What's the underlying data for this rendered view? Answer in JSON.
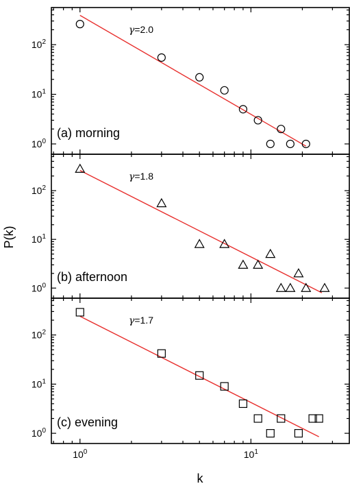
{
  "chart_data": {
    "type": "scatter",
    "xscale": "log",
    "yscale": "log",
    "xlim": [
      0.68,
      38
    ],
    "ylim": [
      0.62,
      560
    ],
    "xlabel": "k",
    "ylabel": "P(k)",
    "x_ticks": [
      {
        "value": 1,
        "base": "10",
        "exp": "0"
      },
      {
        "value": 10,
        "base": "10",
        "exp": "1"
      }
    ],
    "y_ticks": [
      {
        "value": 1,
        "base": "10",
        "exp": "0"
      },
      {
        "value": 10,
        "base": "10",
        "exp": "1"
      },
      {
        "value": 100,
        "base": "10",
        "exp": "2"
      }
    ],
    "fit_color": "#e8302e",
    "panels": [
      {
        "label": "(a) morning",
        "marker": "circle",
        "gamma_symbol": "γ",
        "gamma_text": "=2.0",
        "x": [
          1,
          3,
          5,
          7,
          9,
          11,
          13,
          15,
          17,
          21
        ],
        "y": [
          260,
          55,
          22,
          12,
          5,
          3,
          1,
          2,
          1,
          1
        ],
        "fit": {
          "x": [
            1,
            21
          ],
          "y": [
            390,
            0.9
          ]
        }
      },
      {
        "label": "(b) afternoon",
        "marker": "triangle",
        "gamma_symbol": "γ",
        "gamma_text": "=1.8",
        "x": [
          1,
          3,
          5,
          7,
          9,
          11,
          13,
          15,
          17,
          19,
          21,
          27
        ],
        "y": [
          280,
          55,
          8,
          8,
          3,
          3,
          5,
          1,
          1,
          2,
          1,
          1
        ],
        "fit": {
          "x": [
            1,
            26
          ],
          "y": [
            260,
            0.8
          ]
        }
      },
      {
        "label": "(c) evening",
        "marker": "square",
        "gamma_symbol": "γ",
        "gamma_text": "=1.7",
        "x": [
          1,
          3,
          5,
          7,
          9,
          11,
          13,
          15,
          19,
          23,
          25
        ],
        "y": [
          290,
          42,
          15,
          9,
          4,
          2,
          1,
          2,
          1,
          2,
          2
        ],
        "fit": {
          "x": [
            1,
            25
          ],
          "y": [
            240,
            0.85
          ]
        }
      }
    ]
  }
}
